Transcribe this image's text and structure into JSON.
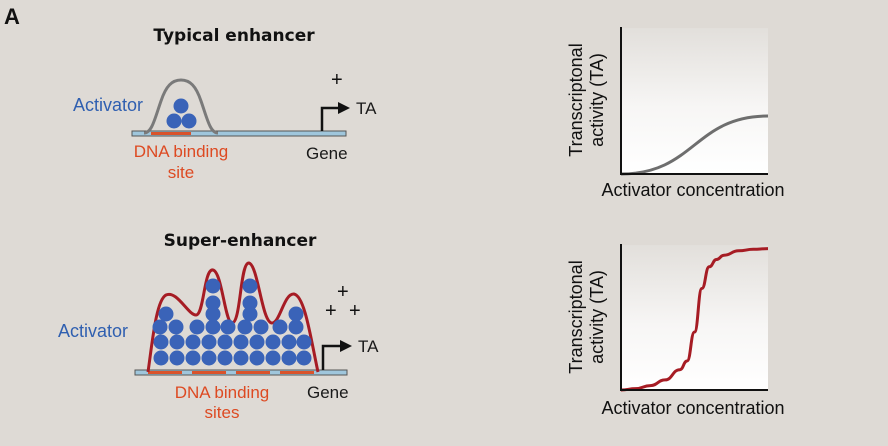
{
  "panel_label": "A",
  "typical": {
    "title": "Typical enhancer",
    "activator_label": "Activator",
    "binding_site_label": [
      "DNA binding",
      "site"
    ],
    "gene_label": "Gene",
    "ta_label": "TA",
    "activity_symbol": "+"
  },
  "super": {
    "title": "Super-enhancer",
    "activator_label": "Activator",
    "binding_site_label": [
      "DNA binding",
      "sites"
    ],
    "gene_label": "Gene",
    "ta_label": "TA",
    "activity_symbols": [
      "+",
      "+",
      "+"
    ]
  },
  "colors": {
    "background": "#dedad5",
    "activator_dot": "#3a63b8",
    "binding_site": "#d9532b",
    "typical_envelope": "#7a7a7a",
    "super_envelope": "#a61c24",
    "linear_curve": "#6e6e6e",
    "sigmoid_curve": "#a61c24"
  },
  "chart_data": [
    {
      "type": "line",
      "xlabel": "Activator concentration",
      "ylabel": [
        "Transcriptonal",
        "activity (TA)"
      ],
      "grid": false,
      "series": [
        {
          "x": [
            0,
            1
          ],
          "y": [
            0,
            0.4
          ]
        }
      ]
    },
    {
      "type": "line",
      "xlabel": "Activator concentration",
      "ylabel": [
        "Transcriptonal",
        "activity (TA)"
      ],
      "grid": false,
      "series": [
        {
          "x": [
            0,
            0.1,
            0.2,
            0.3,
            0.4,
            0.45,
            0.5,
            0.55,
            0.6,
            0.65,
            0.7,
            0.8,
            0.9,
            1.0
          ],
          "y": [
            0,
            0.01,
            0.03,
            0.07,
            0.14,
            0.2,
            0.4,
            0.7,
            0.85,
            0.9,
            0.93,
            0.96,
            0.97,
            0.975
          ]
        }
      ]
    }
  ]
}
